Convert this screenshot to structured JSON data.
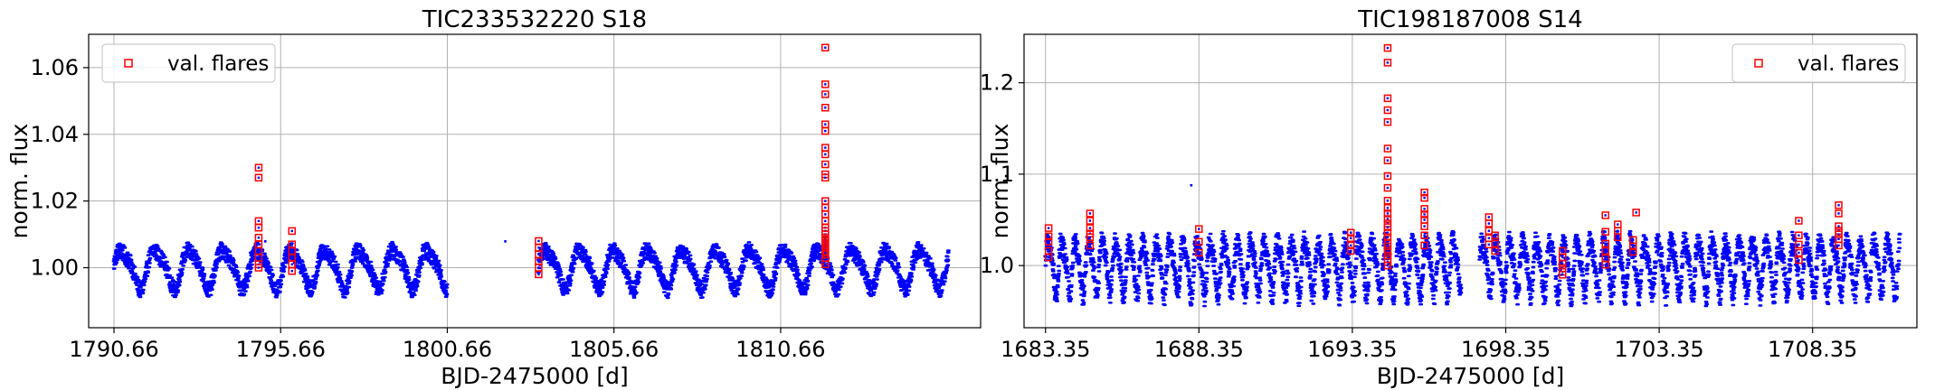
{
  "figure": {
    "background": "#ffffff"
  },
  "chart_data": [
    {
      "type": "scatter",
      "title": "TIC233532220 S18",
      "xlabel": "BJD-2475000 [d]",
      "ylabel": "norm. flux",
      "xlim": [
        1789.9,
        1816.66
      ],
      "ylim": [
        0.982,
        1.07
      ],
      "x_ticks": [
        1790.66,
        1795.66,
        1800.66,
        1805.66,
        1810.66
      ],
      "x_tick_labels": [
        "1790.66",
        "1795.66",
        "1800.66",
        "1805.66",
        "1810.66"
      ],
      "y_ticks": [
        1.0,
        1.02,
        1.04,
        1.06
      ],
      "y_tick_labels": [
        "1.00",
        "1.02",
        "1.04",
        "1.06"
      ],
      "grid": true,
      "legend": {
        "placement": "upper-left",
        "entries": [
          "val. flares"
        ]
      },
      "series": [
        {
          "name": "",
          "kind": "light-curve",
          "color": "#0000ff",
          "segments": [
            [
              1790.66,
              1800.66
            ],
            [
              1803.4,
              1815.7
            ]
          ],
          "period_days": 1.02,
          "amplitude": 0.0055,
          "baseline": 1.0,
          "spike_days": [
            1795.2,
            1802.4
          ]
        },
        {
          "name": "val. flares",
          "kind": "flares",
          "color": "#ff0000",
          "x": [
            1795.0,
            1795.0,
            1795.0,
            1795.0,
            1795.0,
            1795.0,
            1795.0,
            1795.0,
            1795.0,
            1795.0,
            1796.0,
            1796.0,
            1796.0,
            1796.0,
            1796.0,
            1796.0,
            1803.4,
            1803.4,
            1803.4,
            1803.4,
            1803.4,
            1803.4,
            1812.0,
            1812.0,
            1812.0,
            1812.0,
            1812.0,
            1812.0,
            1812.0,
            1812.0,
            1812.0,
            1812.0,
            1812.0,
            1812.0,
            1812.0,
            1812.0,
            1812.0,
            1812.0,
            1812.0,
            1812.0,
            1812.0,
            1812.0,
            1812.0,
            1812.0,
            1812.0,
            1812.0,
            1812.0,
            1812.0,
            1812.0,
            1812.0,
            1812.0,
            1812.0,
            1812.0,
            1812.0
          ],
          "y": [
            1.03,
            1.027,
            1.014,
            1.012,
            1.009,
            1.007,
            1.005,
            1.003,
            1.001,
            1.0,
            1.011,
            1.007,
            1.005,
            1.003,
            1.001,
            0.999,
            1.008,
            1.006,
            1.004,
            1.002,
            1.0,
            0.998,
            1.066,
            1.055,
            1.052,
            1.048,
            1.043,
            1.041,
            1.036,
            1.034,
            1.031,
            1.028,
            1.027,
            1.02,
            1.018,
            1.016,
            1.014,
            1.012,
            1.011,
            1.01,
            1.009,
            1.0085,
            1.008,
            1.0075,
            1.007,
            1.0065,
            1.006,
            1.0055,
            1.005,
            1.0045,
            1.004,
            1.003,
            1.002,
            1.001
          ]
        }
      ]
    },
    {
      "type": "scatter",
      "title": "TIC198187008 S14",
      "xlabel": "BJD-2475000 [d]",
      "ylabel": "norm. flux",
      "xlim": [
        1682.65,
        1711.75
      ],
      "ylim": [
        0.932,
        1.253
      ],
      "x_ticks": [
        1683.35,
        1688.35,
        1693.35,
        1698.35,
        1703.35,
        1708.35
      ],
      "x_tick_labels": [
        "1683.35",
        "1688.35",
        "1693.35",
        "1698.35",
        "1703.35",
        "1708.35"
      ],
      "y_ticks": [
        1.0,
        1.1,
        1.2
      ],
      "y_tick_labels": [
        "1.0",
        "1.1",
        "1.2"
      ],
      "grid": true,
      "legend": {
        "placement": "upper-right",
        "entries": [
          "val. flares"
        ]
      },
      "series": [
        {
          "name": "",
          "kind": "light-curve",
          "color": "#0000ff",
          "segments": [
            [
              1683.35,
              1696.9
            ],
            [
              1697.5,
              1711.2
            ]
          ],
          "period_days": 0.44,
          "amplitude": 0.027,
          "baseline": 1.0,
          "spike_days": [
            1688.1
          ]
        },
        {
          "name": "val. flares",
          "kind": "flares",
          "color": "#ff0000",
          "x": [
            1683.45,
            1683.45,
            1683.45,
            1683.45,
            1683.45,
            1684.8,
            1684.8,
            1684.8,
            1684.8,
            1684.8,
            1684.8,
            1688.35,
            1688.35,
            1688.35,
            1693.3,
            1693.3,
            1693.3,
            1693.3,
            1694.5,
            1694.5,
            1694.5,
            1694.5,
            1694.5,
            1694.5,
            1694.5,
            1694.5,
            1694.5,
            1694.5,
            1694.5,
            1694.5,
            1694.5,
            1694.5,
            1694.5,
            1694.5,
            1694.5,
            1694.5,
            1694.5,
            1694.5,
            1694.5,
            1694.5,
            1694.5,
            1694.5,
            1695.7,
            1695.7,
            1695.7,
            1695.7,
            1695.7,
            1695.7,
            1695.7,
            1695.7,
            1697.8,
            1697.8,
            1697.8,
            1697.8,
            1697.8,
            1698.0,
            1698.0,
            1698.0,
            1700.2,
            1700.2,
            1700.2,
            1700.2,
            1700.2,
            1700.2,
            1701.6,
            1701.6,
            1701.6,
            1701.6,
            1701.6,
            1701.6,
            1702.0,
            1702.0,
            1702.0,
            1702.5,
            1702.5,
            1702.5,
            1702.6,
            1707.9,
            1707.9,
            1707.9,
            1707.9,
            1707.9,
            1709.2,
            1709.2,
            1709.2,
            1709.2,
            1709.2,
            1709.2,
            1709.2
          ],
          "y": [
            1.041,
            1.032,
            1.026,
            1.016,
            1.009,
            1.057,
            1.049,
            1.041,
            1.035,
            1.031,
            1.022,
            1.04,
            1.026,
            1.014,
            1.036,
            1.03,
            1.022,
            1.016,
            1.238,
            1.222,
            1.183,
            1.17,
            1.157,
            1.128,
            1.115,
            1.098,
            1.085,
            1.071,
            1.063,
            1.057,
            1.051,
            1.046,
            1.042,
            1.036,
            1.031,
            1.025,
            1.021,
            1.016,
            1.011,
            1.007,
            1.004,
            1.0,
            1.08,
            1.074,
            1.062,
            1.056,
            1.05,
            1.043,
            1.033,
            1.022,
            1.053,
            1.046,
            1.038,
            1.03,
            1.023,
            1.033,
            1.024,
            1.016,
            1.016,
            1.009,
            1.002,
            0.997,
            0.993,
            0.99,
            1.055,
            1.037,
            1.024,
            1.016,
            1.008,
            1.001,
            1.045,
            1.038,
            1.031,
            1.028,
            1.021,
            1.015,
            1.058,
            1.049,
            1.033,
            1.023,
            1.014,
            1.006,
            1.066,
            1.057,
            1.043,
            1.038,
            1.034,
            1.029,
            1.022
          ]
        }
      ]
    }
  ]
}
